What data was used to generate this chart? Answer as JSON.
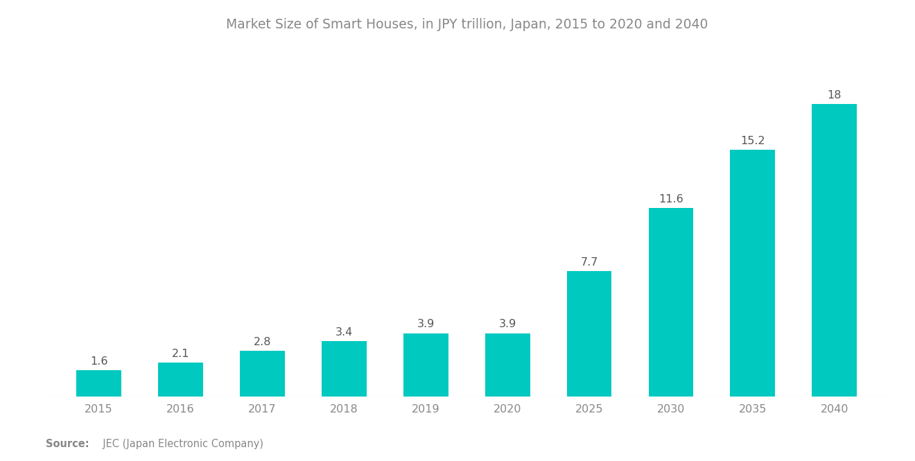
{
  "title": "Market Size of Smart Houses, in JPY trillion, Japan, 2015 to 2020 and 2040",
  "categories": [
    "2015",
    "2016",
    "2017",
    "2018",
    "2019",
    "2020",
    "2025",
    "2030",
    "2035",
    "2040"
  ],
  "values": [
    1.6,
    2.1,
    2.8,
    3.4,
    3.9,
    3.9,
    7.7,
    11.6,
    15.2,
    18
  ],
  "bar_color": "#00C9C0",
  "background_color": "#ffffff",
  "title_fontsize": 13.5,
  "label_fontsize": 11.5,
  "tick_fontsize": 11.5,
  "source_bold": "Source:",
  "source_rest": "  JEC (Japan Electronic Company)",
  "ylim": [
    0,
    21
  ],
  "bar_width": 0.55,
  "title_color": "#888888",
  "tick_color": "#888888",
  "label_color": "#555555",
  "source_color": "#888888"
}
